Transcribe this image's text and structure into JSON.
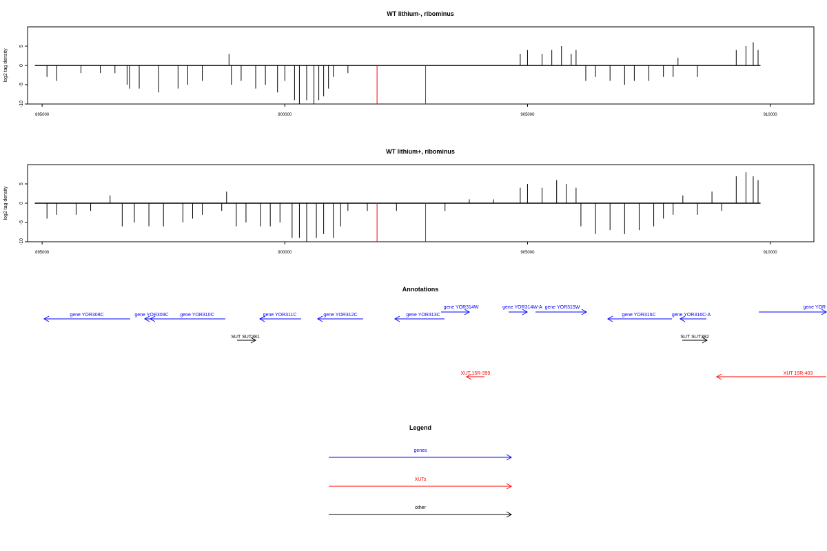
{
  "chart_data": [
    {
      "type": "bar",
      "title": "WT lithium-, ribominus",
      "ylabel": "log2 tag density",
      "xlim": [
        894700,
        910900
      ],
      "ylim": [
        -10,
        10
      ],
      "x_ticks": [
        "895000",
        "900000",
        "905000",
        "910000"
      ],
      "y_ticks": [
        "-10",
        "-5",
        "0",
        "5"
      ],
      "baseline": {
        "x_start": 894850,
        "x_end": 909800
      },
      "series": [
        {
          "values": [
            [
              895100,
              -3
            ],
            [
              895300,
              -4
            ],
            [
              895800,
              -2
            ],
            [
              896200,
              -2
            ],
            [
              896500,
              -2
            ],
            [
              896750,
              -5
            ],
            [
              896800,
              -6
            ],
            [
              897000,
              -6
            ],
            [
              897400,
              -7
            ],
            [
              897800,
              -6
            ],
            [
              898000,
              -5
            ],
            [
              898300,
              -4
            ],
            [
              898850,
              3
            ],
            [
              898900,
              -5
            ],
            [
              899100,
              -4
            ],
            [
              899400,
              -6
            ],
            [
              899600,
              -5
            ],
            [
              899850,
              -7
            ],
            [
              900000,
              -4
            ],
            [
              900200,
              -9
            ],
            [
              900300,
              -10
            ],
            [
              900450,
              -9
            ],
            [
              900600,
              -10
            ],
            [
              900700,
              -9
            ],
            [
              900800,
              -8
            ],
            [
              900900,
              -6
            ],
            [
              901000,
              -3
            ],
            [
              901300,
              -2
            ],
            [
              904850,
              3
            ],
            [
              905000,
              4
            ],
            [
              905300,
              3
            ],
            [
              905500,
              4
            ],
            [
              905700,
              5
            ],
            [
              905900,
              3
            ],
            [
              906000,
              4
            ],
            [
              906200,
              -4
            ],
            [
              906400,
              -3
            ],
            [
              906700,
              -4
            ],
            [
              907000,
              -5
            ],
            [
              907200,
              -4
            ],
            [
              907500,
              -4
            ],
            [
              907800,
              -3
            ],
            [
              908000,
              -3
            ],
            [
              908100,
              2
            ],
            [
              908500,
              -3
            ],
            [
              909300,
              4
            ],
            [
              909500,
              5
            ],
            [
              909650,
              6
            ],
            [
              909750,
              4
            ]
          ]
        },
        {
          "name": "",
          "values": [
            [
              901900,
              -10
            ],
            [
              902900,
              -10
            ]
          ]
        }
      ]
    },
    {
      "type": "bar",
      "title": "WT lithium+, ribominus",
      "ylabel": "log2 tag density",
      "xlim": [
        894700,
        910900
      ],
      "ylim": [
        -10,
        10
      ],
      "x_ticks": [
        "895000",
        "900000",
        "905000",
        "910000"
      ],
      "y_ticks": [
        "-10",
        "-5",
        "0",
        "5"
      ],
      "baseline": {
        "x_start": 894850,
        "x_end": 909800
      },
      "series": [
        {
          "values": [
            [
              895100,
              -4
            ],
            [
              895300,
              -3
            ],
            [
              895700,
              -3
            ],
            [
              896000,
              -2
            ],
            [
              896400,
              2
            ],
            [
              896650,
              -6
            ],
            [
              896900,
              -5
            ],
            [
              897200,
              -6
            ],
            [
              897500,
              -6
            ],
            [
              897900,
              -5
            ],
            [
              898100,
              -4
            ],
            [
              898300,
              -3
            ],
            [
              898700,
              -2
            ],
            [
              898800,
              3
            ],
            [
              899000,
              -6
            ],
            [
              899200,
              -5
            ],
            [
              899500,
              -6
            ],
            [
              899700,
              -6
            ],
            [
              899900,
              -5
            ],
            [
              900150,
              -9
            ],
            [
              900300,
              -9
            ],
            [
              900450,
              -10
            ],
            [
              900650,
              -9
            ],
            [
              900800,
              -8
            ],
            [
              901000,
              -9
            ],
            [
              901150,
              -6
            ],
            [
              901300,
              -2
            ],
            [
              901700,
              -2
            ],
            [
              902300,
              -2
            ],
            [
              903300,
              -2
            ],
            [
              903800,
              1
            ],
            [
              904300,
              1
            ],
            [
              904850,
              4
            ],
            [
              905000,
              5
            ],
            [
              905300,
              4
            ],
            [
              905600,
              6
            ],
            [
              905800,
              5
            ],
            [
              906000,
              4
            ],
            [
              906100,
              -6
            ],
            [
              906400,
              -8
            ],
            [
              906700,
              -7
            ],
            [
              907000,
              -8
            ],
            [
              907300,
              -7
            ],
            [
              907600,
              -6
            ],
            [
              907800,
              -4
            ],
            [
              908000,
              -3
            ],
            [
              908200,
              2
            ],
            [
              908500,
              -3
            ],
            [
              908800,
              3
            ],
            [
              909000,
              -2
            ],
            [
              909300,
              7
            ],
            [
              909500,
              8
            ],
            [
              909650,
              7
            ],
            [
              909750,
              6
            ]
          ]
        },
        {
          "name": "",
          "values": [
            [
              901900,
              -10
            ],
            [
              902900,
              -10
            ]
          ]
        }
      ]
    }
  ],
  "colors": {
    "genes": "#0000ff",
    "xuts": "#ff0000",
    "other": "#000000",
    "red_marker": "#ff0000"
  },
  "annotations": {
    "title": "Annotations",
    "items": [
      {
        "label": "gene YOR308C",
        "color": "#0000ff",
        "dir": "left"
      },
      {
        "label": "gene YOR309C",
        "color": "#0000ff",
        "dir": "left"
      },
      {
        "label": "gene YOR310C",
        "color": "#0000ff",
        "dir": "left"
      },
      {
        "label": "gene YOR311C",
        "color": "#0000ff",
        "dir": "left"
      },
      {
        "label": "gene YOR312C",
        "color": "#0000ff",
        "dir": "left"
      },
      {
        "label": "gene YOR313C",
        "color": "#0000ff",
        "dir": "left"
      },
      {
        "label": "gene YOR314W",
        "color": "#0000ff",
        "dir": "right"
      },
      {
        "label": "gene YOR314W-A",
        "color": "#0000ff",
        "dir": "right"
      },
      {
        "label": "gene YOR315W",
        "color": "#0000ff",
        "dir": "right"
      },
      {
        "label": "gene YOR316C",
        "color": "#0000ff",
        "dir": "left"
      },
      {
        "label": "gene YOR316C-A",
        "color": "#0000ff",
        "dir": "left"
      },
      {
        "label": "gene YOR",
        "color": "#0000ff",
        "dir": "right"
      },
      {
        "label": "SUT SUT381",
        "color": "#000000",
        "dir": "right"
      },
      {
        "label": "SUT SUT382",
        "color": "#000000",
        "dir": "right"
      },
      {
        "label": "XUT 15R-399",
        "color": "#ff0000",
        "dir": "left"
      },
      {
        "label": "XUT 15R-403",
        "color": "#ff0000",
        "dir": "left"
      }
    ]
  },
  "legend": {
    "title": "Legend",
    "items": [
      {
        "label": "genes",
        "color": "#0000ff"
      },
      {
        "label": "XUTs",
        "color": "#ff0000"
      },
      {
        "label": "other",
        "color": "#000000"
      }
    ]
  }
}
